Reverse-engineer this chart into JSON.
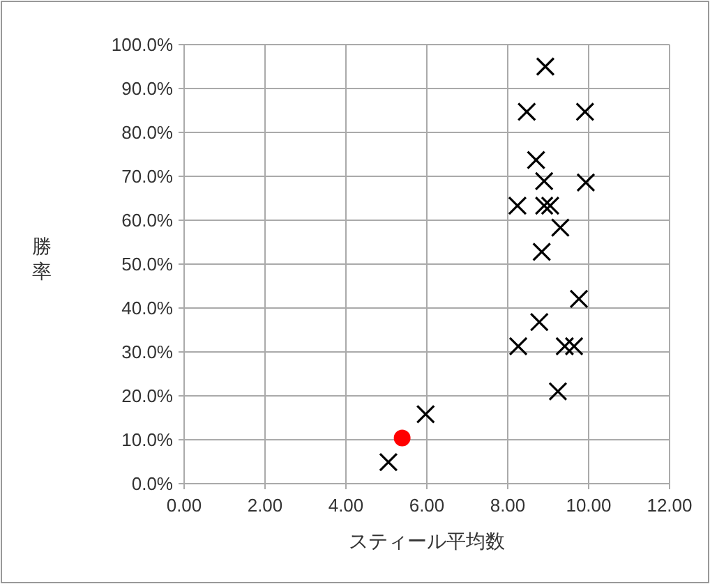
{
  "chart_data": {
    "type": "scatter",
    "xlabel": "スティール平均数",
    "ylabel": "勝率",
    "xlim": [
      0,
      12
    ],
    "ylim": [
      0,
      100
    ],
    "xticks": [
      {
        "value": 0,
        "label": "0.00"
      },
      {
        "value": 2,
        "label": "2.00"
      },
      {
        "value": 4,
        "label": "4.00"
      },
      {
        "value": 6,
        "label": "6.00"
      },
      {
        "value": 8,
        "label": "8.00"
      },
      {
        "value": 10,
        "label": "10.00"
      },
      {
        "value": 12,
        "label": "12.00"
      }
    ],
    "yticks": [
      {
        "value": 0,
        "label": "0.0%"
      },
      {
        "value": 10,
        "label": "10.0%"
      },
      {
        "value": 20,
        "label": "20.0%"
      },
      {
        "value": 30,
        "label": "30.0%"
      },
      {
        "value": 40,
        "label": "40.0%"
      },
      {
        "value": 50,
        "label": "50.0%"
      },
      {
        "value": 60,
        "label": "60.0%"
      },
      {
        "value": 70,
        "label": "70.0%"
      },
      {
        "value": 80,
        "label": "80.0%"
      },
      {
        "value": 90,
        "label": "90.0%"
      },
      {
        "value": 100,
        "label": "100.0%"
      }
    ],
    "grid": true,
    "series": [
      {
        "color": "#000000",
        "marker": "cross",
        "x": [
          8.93,
          8.47,
          9.91,
          8.7,
          8.9,
          9.93,
          8.24,
          8.9,
          9.05,
          9.3,
          8.84,
          9.76,
          8.78,
          8.26,
          9.41,
          9.64,
          9.24,
          5.97,
          5.05
        ],
        "values": [
          95.0,
          84.7,
          84.7,
          73.7,
          68.9,
          68.6,
          63.3,
          63.3,
          63.3,
          58.3,
          52.8,
          42.1,
          36.8,
          31.3,
          31.3,
          31.3,
          21.0,
          15.8,
          4.9
        ]
      },
      {
        "color": "#ff0000",
        "marker": "circle",
        "x": [
          5.39
        ],
        "values": [
          10.4
        ]
      }
    ]
  }
}
